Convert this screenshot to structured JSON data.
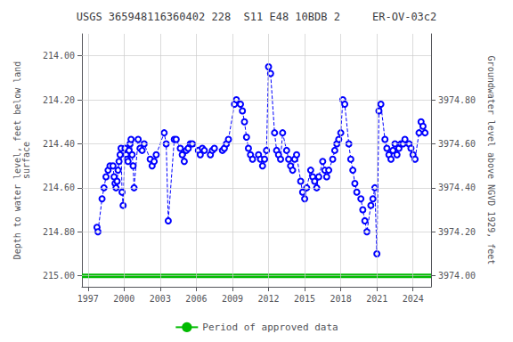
{
  "chart_data": {
    "type": "line",
    "title": "USGS 365948116360402 228  S11 E48 10BDB 2     ER-OV-03c2",
    "y_label": "Depth to water level, feet below land\nsurface",
    "y2_label": "Groundwater level above NGVD 1929, feet",
    "x": [
      1997.75,
      1997.83,
      1998.17,
      1998.33,
      1998.5,
      1998.67,
      1998.83,
      1999.08,
      1999.17,
      1999.25,
      1999.33,
      1999.42,
      1999.5,
      1999.58,
      1999.67,
      1999.75,
      1999.83,
      1999.92,
      2000.08,
      2000.17,
      2000.25,
      2000.33,
      2000.42,
      2000.5,
      2000.58,
      2000.67,
      2000.75,
      2000.83,
      2001.17,
      2001.33,
      2001.5,
      2001.67,
      2002.17,
      2002.33,
      2002.5,
      2002.67,
      2003.33,
      2003.5,
      2003.67,
      2004.17,
      2004.33,
      2004.67,
      2004.83,
      2005.0,
      2005.17,
      2005.33,
      2005.5,
      2005.67,
      2006.17,
      2006.33,
      2006.5,
      2006.67,
      2007.17,
      2007.33,
      2007.5,
      2008.17,
      2008.33,
      2008.5,
      2008.67,
      2009.17,
      2009.33,
      2009.67,
      2009.83,
      2010.0,
      2010.17,
      2010.33,
      2010.5,
      2010.67,
      2011.17,
      2011.33,
      2011.5,
      2011.67,
      2011.83,
      2012.0,
      2012.17,
      2012.5,
      2012.67,
      2012.83,
      2013.0,
      2013.17,
      2013.5,
      2013.67,
      2013.83,
      2014.0,
      2014.17,
      2014.33,
      2014.67,
      2014.83,
      2015.0,
      2015.17,
      2015.5,
      2015.67,
      2015.83,
      2016.0,
      2016.17,
      2016.5,
      2016.67,
      2016.83,
      2017.0,
      2017.33,
      2017.5,
      2017.67,
      2017.83,
      2018.0,
      2018.17,
      2018.33,
      2018.67,
      2018.83,
      2019.0,
      2019.17,
      2019.33,
      2019.67,
      2019.83,
      2020.0,
      2020.17,
      2020.5,
      2020.67,
      2020.83,
      2021.0,
      2021.17,
      2021.33,
      2021.67,
      2021.83,
      2022.0,
      2022.17,
      2022.33,
      2022.5,
      2022.67,
      2022.83,
      2023.0,
      2023.17,
      2023.33,
      2023.67,
      2023.83,
      2024.0,
      2024.17,
      2024.5,
      2024.67,
      2024.83,
      2025.0
    ],
    "series": [
      {
        "color": "#0000ff",
        "line_style": "dashed",
        "marker": "circle",
        "values": [
          214.78,
          214.8,
          214.65,
          214.6,
          214.55,
          214.52,
          214.5,
          214.5,
          214.55,
          214.58,
          214.6,
          214.57,
          214.52,
          214.48,
          214.45,
          214.42,
          214.62,
          214.68,
          214.42,
          214.45,
          214.47,
          214.48,
          214.43,
          214.4,
          214.38,
          214.45,
          214.5,
          214.6,
          214.38,
          214.42,
          214.43,
          214.4,
          214.47,
          214.5,
          214.48,
          214.45,
          214.35,
          214.4,
          214.75,
          214.38,
          214.38,
          214.42,
          214.45,
          214.48,
          214.43,
          214.42,
          214.4,
          214.4,
          214.43,
          214.45,
          214.42,
          214.43,
          214.45,
          214.43,
          214.42,
          214.43,
          214.42,
          214.4,
          214.38,
          214.22,
          214.2,
          214.22,
          214.25,
          214.3,
          214.37,
          214.42,
          214.45,
          214.47,
          214.45,
          214.47,
          214.5,
          214.47,
          214.43,
          214.05,
          214.08,
          214.35,
          214.43,
          214.45,
          214.47,
          214.35,
          214.43,
          214.47,
          214.5,
          214.52,
          214.47,
          214.45,
          214.57,
          214.62,
          214.65,
          214.6,
          214.52,
          214.55,
          214.57,
          214.6,
          214.55,
          214.48,
          214.52,
          214.55,
          214.52,
          214.47,
          214.43,
          214.4,
          214.38,
          214.35,
          214.2,
          214.22,
          214.4,
          214.47,
          214.52,
          214.58,
          214.62,
          214.65,
          214.7,
          214.75,
          214.8,
          214.68,
          214.65,
          214.6,
          214.9,
          214.25,
          214.22,
          214.38,
          214.42,
          214.45,
          214.47,
          214.43,
          214.4,
          214.45,
          214.42,
          214.4,
          214.4,
          214.38,
          214.4,
          214.42,
          214.45,
          214.47,
          214.35,
          214.3,
          214.32,
          214.35
        ]
      }
    ],
    "hline": {
      "y": 215.0,
      "name": "Period of approved data",
      "color": "#00bb00"
    },
    "xlim": [
      1996.5,
      2025.5
    ],
    "xticks": [
      1997,
      2000,
      2003,
      2006,
      2009,
      2012,
      2015,
      2018,
      2021,
      2024
    ],
    "ylim": [
      215.05,
      213.9
    ],
    "yticks": [
      {
        "value": 214.0,
        "label": "214.00"
      },
      {
        "value": 214.2,
        "label": "214.20"
      },
      {
        "value": 214.4,
        "label": "214.40"
      },
      {
        "value": 214.6,
        "label": "214.60"
      },
      {
        "value": 214.8,
        "label": "214.80"
      },
      {
        "value": 215.0,
        "label": "215.00"
      }
    ],
    "y2lim": [
      3973.95,
      3975.1
    ],
    "y2ticks": [
      {
        "value": 3974.0,
        "label": "3974.00"
      },
      {
        "value": 3974.2,
        "label": "3974.20"
      },
      {
        "value": 3974.4,
        "label": "3974.40"
      },
      {
        "value": 3974.6,
        "label": "3974.60"
      },
      {
        "value": 3974.8,
        "label": "3974.80"
      }
    ],
    "grid": true,
    "legend": "bottom"
  }
}
